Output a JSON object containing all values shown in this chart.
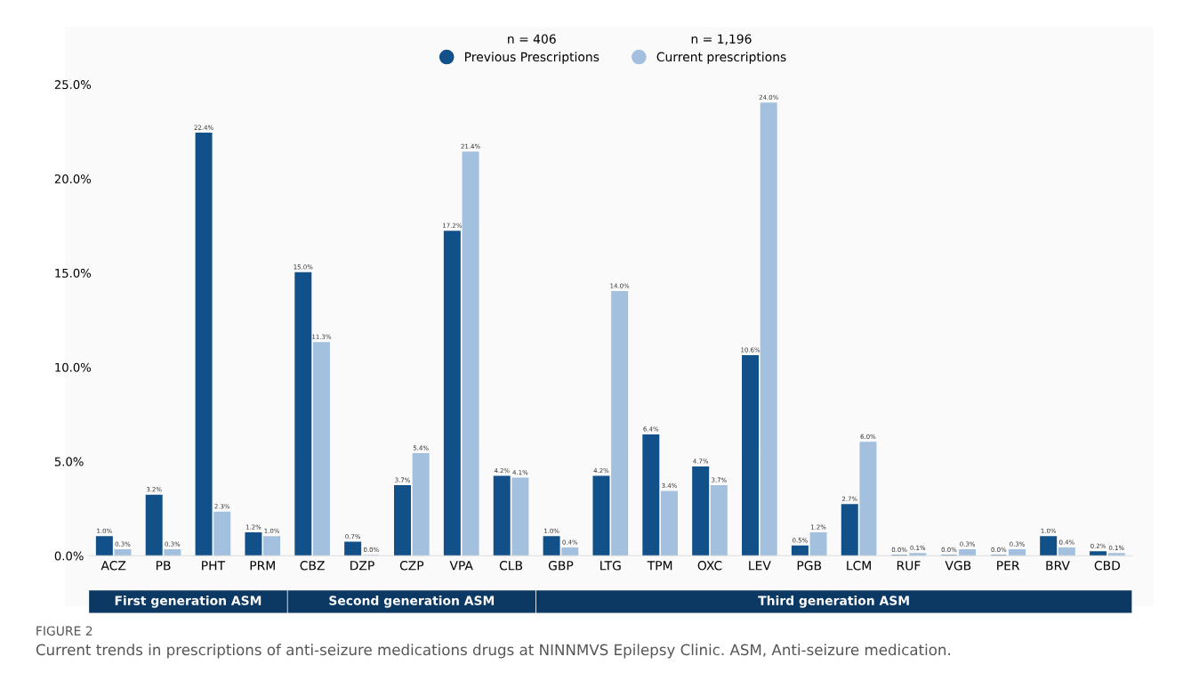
{
  "chart_data": {
    "type": "bar",
    "categories": [
      "ACZ",
      "PB",
      "PHT",
      "PRM",
      "CBZ",
      "DZP",
      "CZP",
      "VPA",
      "CLB",
      "GBP",
      "LTG",
      "TPM",
      "OXC",
      "LEV",
      "PGB",
      "LCM",
      "RUF",
      "VGB",
      "PER",
      "BRV",
      "CBD"
    ],
    "series": [
      {
        "name": "Previous Prescriptions",
        "color": "#12508a",
        "values": [
          1.0,
          3.2,
          22.4,
          1.2,
          15.0,
          0.7,
          3.7,
          17.2,
          4.2,
          1.0,
          4.2,
          6.4,
          4.7,
          10.6,
          0.5,
          2.7,
          0.0,
          0.0,
          0.0,
          1.0,
          0.2
        ],
        "value_labels": [
          "1.0%",
          "3.2%",
          "22.4%",
          "1.2%",
          "15.0%",
          "0.7%",
          "3.7%",
          "17.2%",
          "4.2%",
          "1.0%",
          "4.2%",
          "6.4%",
          "4.7%",
          "10.6%",
          "0.5%",
          "2.7%",
          "0.0%",
          "0.0%",
          "0.0%",
          "1.0%",
          "0.2%"
        ]
      },
      {
        "name": "Current prescriptions",
        "color": "#a3c0de",
        "values": [
          0.3,
          0.3,
          2.3,
          1.0,
          11.3,
          0.0,
          5.4,
          21.4,
          4.1,
          0.4,
          14.0,
          3.4,
          3.7,
          24.0,
          1.2,
          6.0,
          0.1,
          0.3,
          0.3,
          0.4,
          0.1
        ],
        "value_labels": [
          "0.3%",
          "0.3%",
          "2.3%",
          "1.0%",
          "11.3%",
          "0.0%",
          "5.4%",
          "21.4%",
          "4.1%",
          "0.4%",
          "14.0%",
          "3.4%",
          "3.7%",
          "24.0%",
          "1.2%",
          "6.0%",
          "0.1%",
          "0.3%",
          "0.3%",
          "0.4%",
          "0.1%"
        ]
      }
    ],
    "ylim": [
      0,
      25
    ],
    "yticks": [
      {
        "value": 0,
        "label": "0.0%"
      },
      {
        "value": 5,
        "label": "5.0%"
      },
      {
        "value": 10,
        "label": "10.0%"
      },
      {
        "value": 15,
        "label": "15.0%"
      },
      {
        "value": 20,
        "label": "20.0%"
      },
      {
        "value": 25,
        "label": "25.0%"
      }
    ],
    "legend": "top",
    "grid": false,
    "annotations": [
      "n = 406",
      "n = 1,196",
      "First generation ASM",
      "Second generation ASM",
      "Third generation ASM",
      "FIGURE 2",
      "Current trends in prescriptions of anti-seizure medications drugs at NINNMVS Epilepsy Clinic. ASM, Anti-seizure medication."
    ]
  }
}
